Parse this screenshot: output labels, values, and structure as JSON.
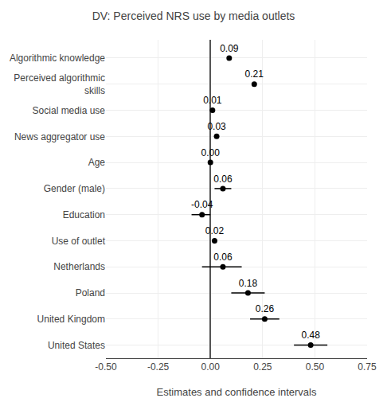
{
  "chart_data": {
    "type": "forest",
    "title": "DV: Perceived NRS use by media outlets",
    "xlabel": "Estimates and confidence intervals",
    "categories": [
      "Algorithmic knowledge",
      "Perceived algorithmic\nskills",
      "Social media use",
      "News aggregator use",
      "Age",
      "Gender (male)",
      "Education",
      "Use of outlet",
      "Netherlands",
      "Poland",
      "United Kingdom",
      "United States"
    ],
    "values": [
      0.09,
      0.21,
      0.01,
      0.03,
      0.0,
      0.06,
      -0.04,
      0.02,
      0.06,
      0.18,
      0.26,
      0.48
    ],
    "value_labels": [
      "0.09",
      "0.21",
      "0.01",
      "0.03",
      "0.00",
      "0.06",
      "-0.04",
      "0.02",
      "0.06",
      "0.18",
      "0.26",
      "0.48"
    ],
    "ci_lower": [
      0.09,
      0.21,
      0.01,
      0.03,
      0.0,
      0.02,
      -0.09,
      0.02,
      -0.04,
      0.1,
      0.19,
      0.4
    ],
    "ci_upper": [
      0.09,
      0.21,
      0.01,
      0.03,
      0.0,
      0.1,
      -0.0,
      0.02,
      0.15,
      0.26,
      0.33,
      0.56
    ],
    "xlim": [
      -0.5,
      0.75
    ],
    "xticks": [
      {
        "value": -0.5,
        "label": "-0.50"
      },
      -0.25,
      {
        "value": 0.0,
        "label": "0.00"
      },
      0.25,
      {
        "value": 0.5,
        "label": "0.50"
      },
      0.75
    ],
    "color": "#000000",
    "grid": true,
    "data_labels": true
  }
}
